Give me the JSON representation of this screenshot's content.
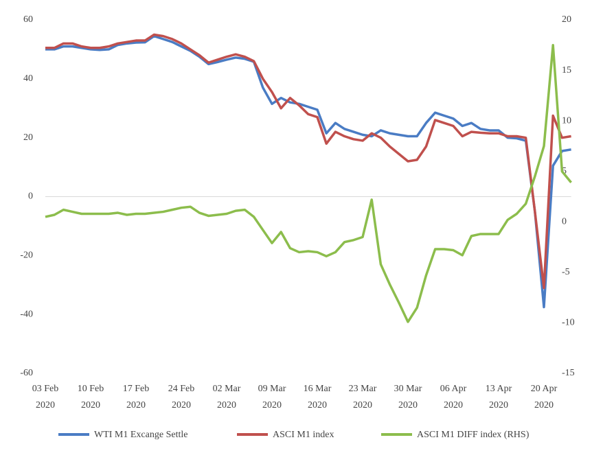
{
  "chart_data": {
    "type": "line",
    "categories": [
      "03 Feb 2020",
      null,
      null,
      null,
      null,
      "10 Feb 2020",
      null,
      null,
      null,
      null,
      "17 Feb 2020",
      null,
      null,
      null,
      null,
      "24 Feb 2020",
      null,
      null,
      null,
      null,
      "02 Mar 2020",
      null,
      null,
      null,
      null,
      "09 Mar 2020",
      null,
      null,
      null,
      null,
      "16 Mar 2020",
      null,
      null,
      null,
      null,
      "23 Mar 2020",
      null,
      null,
      null,
      null,
      "30 Mar 2020",
      null,
      null,
      null,
      null,
      "06 Apr 2020",
      null,
      null,
      null,
      null,
      "13 Apr 2020",
      null,
      null,
      null,
      null,
      "20 Apr 2020",
      null,
      null,
      null
    ],
    "series": [
      {
        "name": "WTI M1 Excange Settle",
        "color": "#4a7cc4",
        "values": [
          50,
          50,
          51,
          51,
          50.5,
          50,
          49.8,
          50,
          51.5,
          52,
          52.3,
          52.4,
          54.5,
          53.5,
          52.5,
          51,
          49.5,
          47.5,
          45,
          45.7,
          46.5,
          47.2,
          46.8,
          45.8,
          37,
          31.5,
          33.5,
          32,
          31.5,
          30.5,
          29.5,
          21.5,
          25,
          23,
          22,
          21,
          20.5,
          22.5,
          21.5,
          21,
          20.5,
          20.5,
          25,
          28.5,
          27.5,
          26.5,
          24,
          25,
          23,
          22.5,
          22.5,
          20,
          19.8,
          19,
          -5,
          -37.5,
          10.5,
          15.5,
          16
        ]
      },
      {
        "name": "ASCI M1 index",
        "color": "#c0504d",
        "values": [
          50.5,
          50.5,
          52,
          52,
          51,
          50.5,
          50.5,
          51,
          52,
          52.5,
          53,
          53,
          55,
          54.5,
          53.5,
          52,
          50,
          48,
          45.5,
          46.5,
          47.5,
          48.3,
          47.5,
          46,
          40,
          35.5,
          30,
          33.5,
          31,
          28,
          27,
          18,
          22,
          20.5,
          19.5,
          19,
          21.5,
          20,
          17,
          14.5,
          12,
          12.5,
          17,
          26,
          25,
          24,
          20.5,
          22,
          21.7,
          21.5,
          21.5,
          20.5,
          20.5,
          20,
          -5,
          -31,
          27.5,
          20,
          20.5
        ]
      },
      {
        "name": "ASCI M1 DIFF index (RHS)",
        "color": "#8cbd4c",
        "axis": "y2",
        "values": [
          0.5,
          0.7,
          1.2,
          1.0,
          0.8,
          0.8,
          0.8,
          0.8,
          0.9,
          0.7,
          0.8,
          0.8,
          0.9,
          1.0,
          1.2,
          1.4,
          1.5,
          0.9,
          0.6,
          0.7,
          0.8,
          1.1,
          1.2,
          0.5,
          -0.8,
          -2.1,
          -1.0,
          -2.6,
          -3.0,
          -2.9,
          -3.0,
          -3.4,
          -3.0,
          -2.0,
          -1.8,
          -1.5,
          2.2,
          -4.2,
          -6.2,
          -8,
          -9.9,
          -8.5,
          -5.3,
          -2.7,
          -2.7,
          -2.8,
          -3.3,
          -1.4,
          -1.2,
          -1.2,
          -1.2,
          0.2,
          0.8,
          1.8,
          4.5,
          7.5,
          17.5,
          5,
          3.9
        ]
      }
    ],
    "ylim": [
      -60,
      60
    ],
    "yticks": [
      -60,
      -40,
      -20,
      0,
      20,
      40,
      60
    ],
    "y2lim": [
      -15,
      20
    ],
    "y2ticks": [
      -15,
      -10,
      -5,
      0,
      5,
      10,
      15,
      20
    ],
    "grid": false,
    "legend": "bottom"
  }
}
